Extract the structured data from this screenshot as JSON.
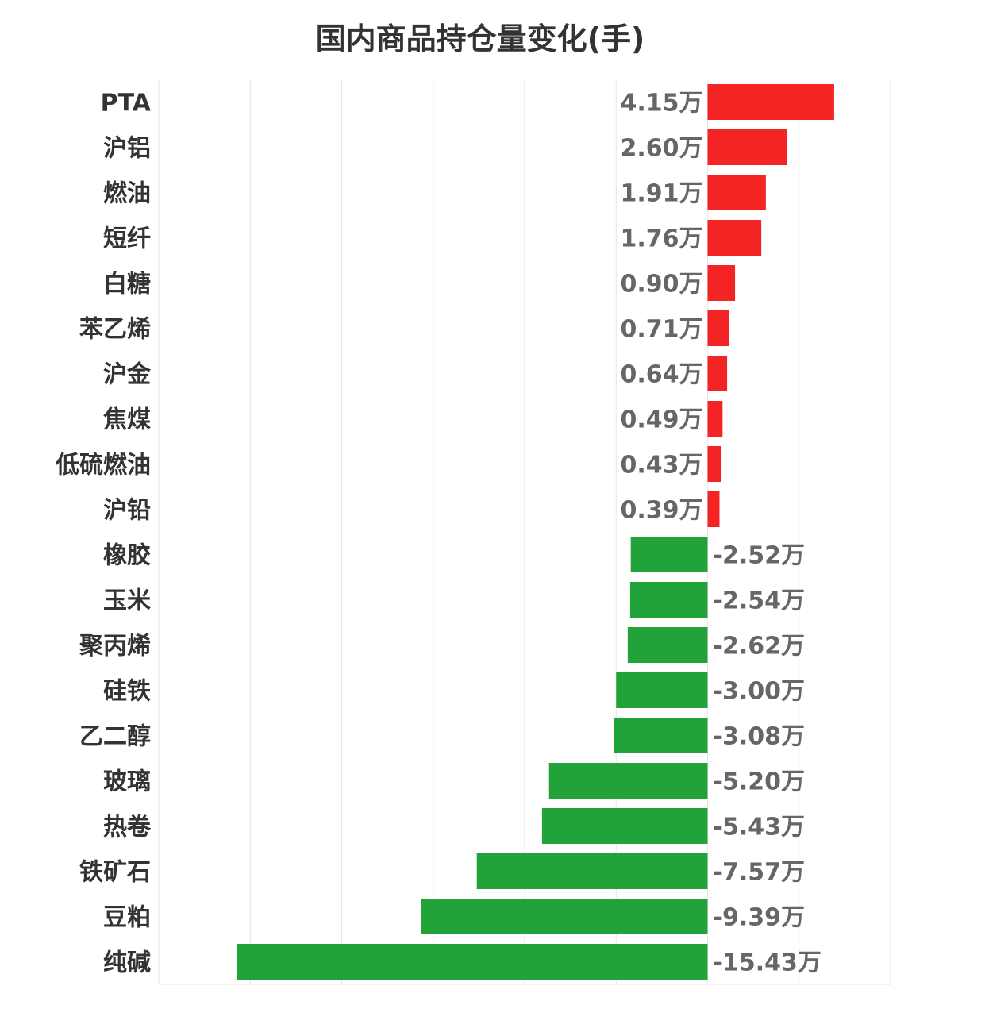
{
  "chart_data": {
    "type": "bar",
    "orientation": "horizontal",
    "title": "国内商品持仓量变化(手)",
    "categories": [
      "PTA",
      "沪铝",
      "燃油",
      "短纤",
      "白糖",
      "苯乙烯",
      "沪金",
      "焦煤",
      "低硫燃油",
      "沪铅",
      "橡胶",
      "玉米",
      "聚丙烯",
      "硅铁",
      "乙二醇",
      "玻璃",
      "热卷",
      "铁矿石",
      "豆粕",
      "纯碱"
    ],
    "values": [
      4.15,
      2.6,
      1.91,
      1.76,
      0.9,
      0.71,
      0.64,
      0.49,
      0.43,
      0.39,
      -2.52,
      -2.54,
      -2.62,
      -3.0,
      -3.08,
      -5.2,
      -5.43,
      -7.57,
      -9.39,
      -15.43
    ],
    "value_labels": [
      "4.15万",
      "2.60万",
      "1.91万",
      "1.76万",
      "0.90万",
      "0.71万",
      "0.64万",
      "0.49万",
      "0.43万",
      "0.39万",
      "-2.52万",
      "-2.54万",
      "-2.62万",
      "-3.00万",
      "-3.08万",
      "-5.20万",
      "-5.43万",
      "-7.57万",
      "-9.39万",
      "-15.43万"
    ],
    "unit": "万",
    "xlim": [
      -18,
      6
    ],
    "grid": true,
    "colors": {
      "positive": "#f52424",
      "negative": "#21a33a",
      "grid": "#e6e6e6"
    }
  }
}
